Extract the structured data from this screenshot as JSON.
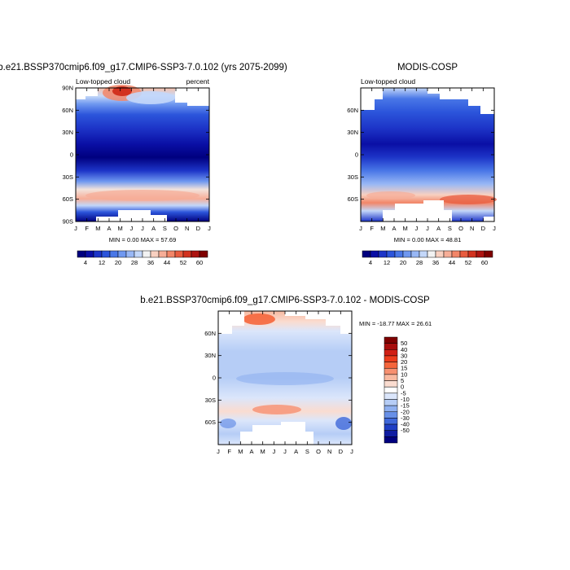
{
  "chart_data": [
    {
      "type": "heatmap",
      "title": "b.e21.BSSP370cmip6.f09_g17.CMIP6-SSP3-7.0.102 (yrs 2075-2099)",
      "left_label": "Low-topped cloud",
      "right_label": "percent",
      "x_ticks": [
        "J",
        "F",
        "M",
        "A",
        "M",
        "J",
        "J",
        "A",
        "S",
        "O",
        "N",
        "D",
        "J"
      ],
      "y_ticks": [
        "90N",
        "60N",
        "30N",
        "0",
        "30S",
        "60S",
        "90S"
      ],
      "stats": "MIN =   0.00 MAX =  57.69",
      "min": 0.0,
      "max": 57.69,
      "colorbar": {
        "labels": [
          "4",
          "12",
          "20",
          "28",
          "36",
          "44",
          "52",
          "60"
        ],
        "colors": [
          "#00007f",
          "#0a0fa5",
          "#1d35c8",
          "#2c55db",
          "#4977e7",
          "#6f98f0",
          "#98b7f5",
          "#c3d7f9",
          "#f2f2f2",
          "#f8d0c0",
          "#f6ad97",
          "#f28668",
          "#e85c3f",
          "#d2321f",
          "#ad1411",
          "#7f0000"
        ]
      }
    },
    {
      "type": "heatmap",
      "title": "MODIS-COSP",
      "left_label": "Low-topped cloud",
      "x_ticks": [
        "J",
        "F",
        "M",
        "A",
        "M",
        "J",
        "J",
        "A",
        "S",
        "O",
        "N",
        "D",
        "J"
      ],
      "y_ticks": [
        "60N",
        "30N",
        "0",
        "30S",
        "60S"
      ],
      "stats": "MIN =   0.00 MAX =  48.81",
      "min": 0.0,
      "max": 48.81,
      "colorbar": {
        "labels": [
          "4",
          "12",
          "20",
          "28",
          "36",
          "44",
          "52",
          "60"
        ],
        "colors": [
          "#00007f",
          "#0a0fa5",
          "#1d35c8",
          "#2c55db",
          "#4977e7",
          "#6f98f0",
          "#98b7f5",
          "#c3d7f9",
          "#f2f2f2",
          "#f8d0c0",
          "#f6ad97",
          "#f28668",
          "#e85c3f",
          "#d2321f",
          "#ad1411",
          "#7f0000"
        ]
      }
    },
    {
      "type": "heatmap",
      "title": "b.e21.BSSP370cmip6.f09_g17.CMIP6-SSP3-7.0.102 - MODIS-COSP",
      "x_ticks": [
        "J",
        "F",
        "M",
        "A",
        "M",
        "J",
        "J",
        "A",
        "S",
        "O",
        "N",
        "D",
        "J"
      ],
      "y_ticks": [
        "60N",
        "30N",
        "0",
        "30S",
        "60S"
      ],
      "stats": "MIN = -18.77 MAX =  26.61",
      "min": -18.77,
      "max": 26.61,
      "colorbar": {
        "labels": [
          "50",
          "40",
          "30",
          "20",
          "15",
          "10",
          "5",
          "0",
          "-5",
          "-10",
          "-15",
          "-20",
          "-30",
          "-40",
          "-50"
        ],
        "colors": [
          "#7f0000",
          "#a80d0d",
          "#d01f14",
          "#ec3c1c",
          "#f5663c",
          "#f79070",
          "#f8b9a0",
          "#fadcd0",
          "#ffffff",
          "#dbe6fb",
          "#b6cdf6",
          "#8fb0f0",
          "#6890e7",
          "#3f68da",
          "#1f3fc4",
          "#0f1ca2",
          "#00007f"
        ]
      }
    }
  ]
}
